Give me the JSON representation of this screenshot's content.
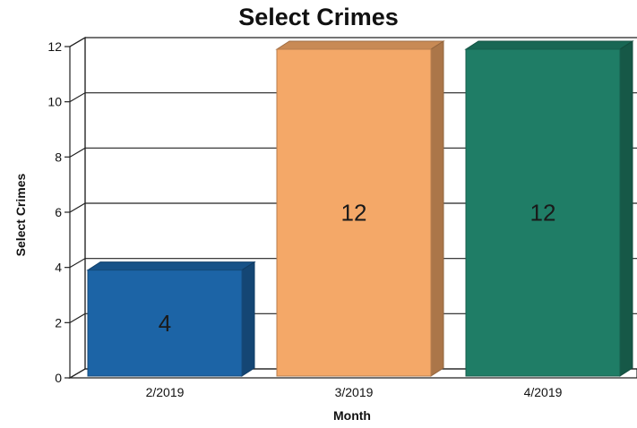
{
  "chart_data": {
    "type": "bar",
    "title": "Select Crimes",
    "xlabel": "Month",
    "ylabel": "Select Crimes",
    "categories": [
      "2/2019",
      "3/2019",
      "4/2019"
    ],
    "values": [
      4,
      12,
      12
    ],
    "data_labels": [
      "4",
      "12",
      "12"
    ],
    "yticks": [
      "0",
      "2",
      "4",
      "6",
      "8",
      "10",
      "12"
    ],
    "ylim": [
      0,
      12
    ],
    "grid": true,
    "legend": "none",
    "colors": [
      "#1c64a6",
      "#f4a868",
      "#1f7d66"
    ]
  }
}
